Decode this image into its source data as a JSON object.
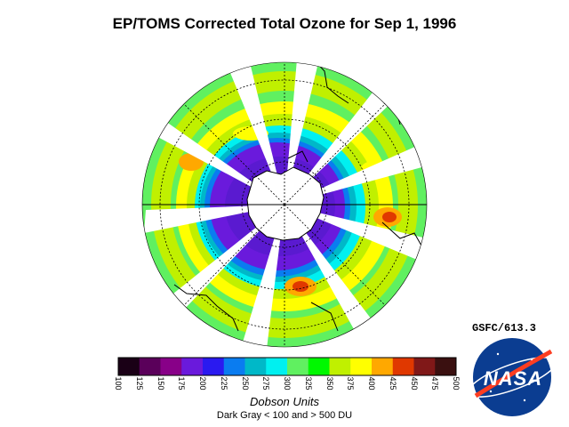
{
  "title": "EP/TOMS Corrected Total Ozone for Sep  1, 1996",
  "credit": "GSFC/613.3",
  "logo_text": "NASA",
  "colorbar": {
    "label": "Dobson Units",
    "note": "Dark Gray < 100 and > 500 DU",
    "ticks": [
      "100",
      "125",
      "150",
      "175",
      "200",
      "225",
      "250",
      "275",
      "300",
      "325",
      "350",
      "375",
      "400",
      "425",
      "450",
      "475",
      "500"
    ],
    "colors": [
      "#1a0016",
      "#5a005a",
      "#880088",
      "#6a1adc",
      "#2a1af0",
      "#0a7cf0",
      "#00b8c8",
      "#00f0f0",
      "#60f060",
      "#00f800",
      "#c0f000",
      "#ffff00",
      "#ffa800",
      "#e03800",
      "#801818",
      "#3a1010"
    ]
  },
  "map": {
    "projection": "south-polar-stereographic",
    "ozone_hole_color": "#5a1ad0",
    "land_color": "#ffffff",
    "coastline_color": "#000000"
  }
}
